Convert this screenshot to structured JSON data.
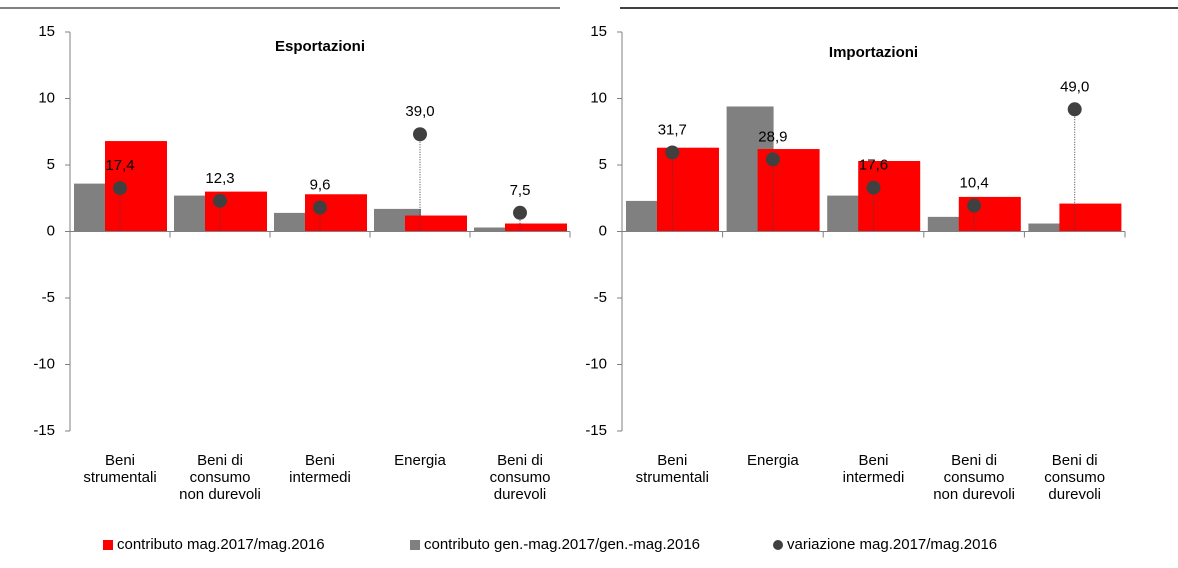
{
  "chart_data": [
    {
      "type": "bar",
      "title": "Esportazioni",
      "categories": [
        "Beni\nstrumentali",
        "Beni di\nconsumo\nnon durevoli",
        "Beni\nintermedi",
        "Energia",
        "Beni di\nconsumo\ndurevoli"
      ],
      "ylim": [
        -15,
        15
      ],
      "yticks": [
        -15,
        -10,
        -5,
        0,
        5,
        10,
        15
      ],
      "y2lim": [
        -80,
        80
      ],
      "series": [
        {
          "name": "contributo gen.-mag.2017/gen.-mag.2016",
          "color": "#808080",
          "values": [
            3.6,
            2.7,
            1.4,
            1.7,
            0.3
          ]
        },
        {
          "name": "contributo mag.2017/mag.2016",
          "color": "#ff0000",
          "values": [
            6.8,
            3.0,
            2.8,
            1.2,
            0.6
          ]
        },
        {
          "name": "variazione mag.2017/mag.2016",
          "color": "#404040",
          "axis": "y2",
          "values": [
            17.4,
            12.3,
            9.6,
            39.0,
            7.5
          ],
          "value_labels": [
            "17,4",
            "12,3",
            "9,6",
            "39,0",
            "7,5"
          ]
        }
      ]
    },
    {
      "type": "bar",
      "title": "Importazioni",
      "categories": [
        "Beni\nstrumentali",
        "Energia",
        "Beni\nintermedi",
        "Beni di\nconsumo\nnon durevoli",
        "Beni di\nconsumo\ndurevoli"
      ],
      "ylim": [
        -15,
        15
      ],
      "yticks": [
        -15,
        -10,
        -5,
        0,
        5,
        10,
        15
      ],
      "y2lim": [
        -80,
        80
      ],
      "series": [
        {
          "name": "contributo gen.-mag.2017/gen.-mag.2016",
          "color": "#808080",
          "values": [
            2.3,
            9.4,
            2.7,
            1.1,
            0.6
          ]
        },
        {
          "name": "contributo mag.2017/mag.2016",
          "color": "#ff0000",
          "values": [
            6.3,
            6.2,
            5.3,
            2.6,
            2.1
          ]
        },
        {
          "name": "variazione mag.2017/mag.2016",
          "color": "#404040",
          "axis": "y2",
          "values": [
            31.7,
            28.9,
            17.6,
            10.4,
            49.0
          ],
          "value_labels": [
            "31,7",
            "28,9",
            "17,6",
            "10,4",
            "49,0"
          ]
        }
      ]
    }
  ]
}
